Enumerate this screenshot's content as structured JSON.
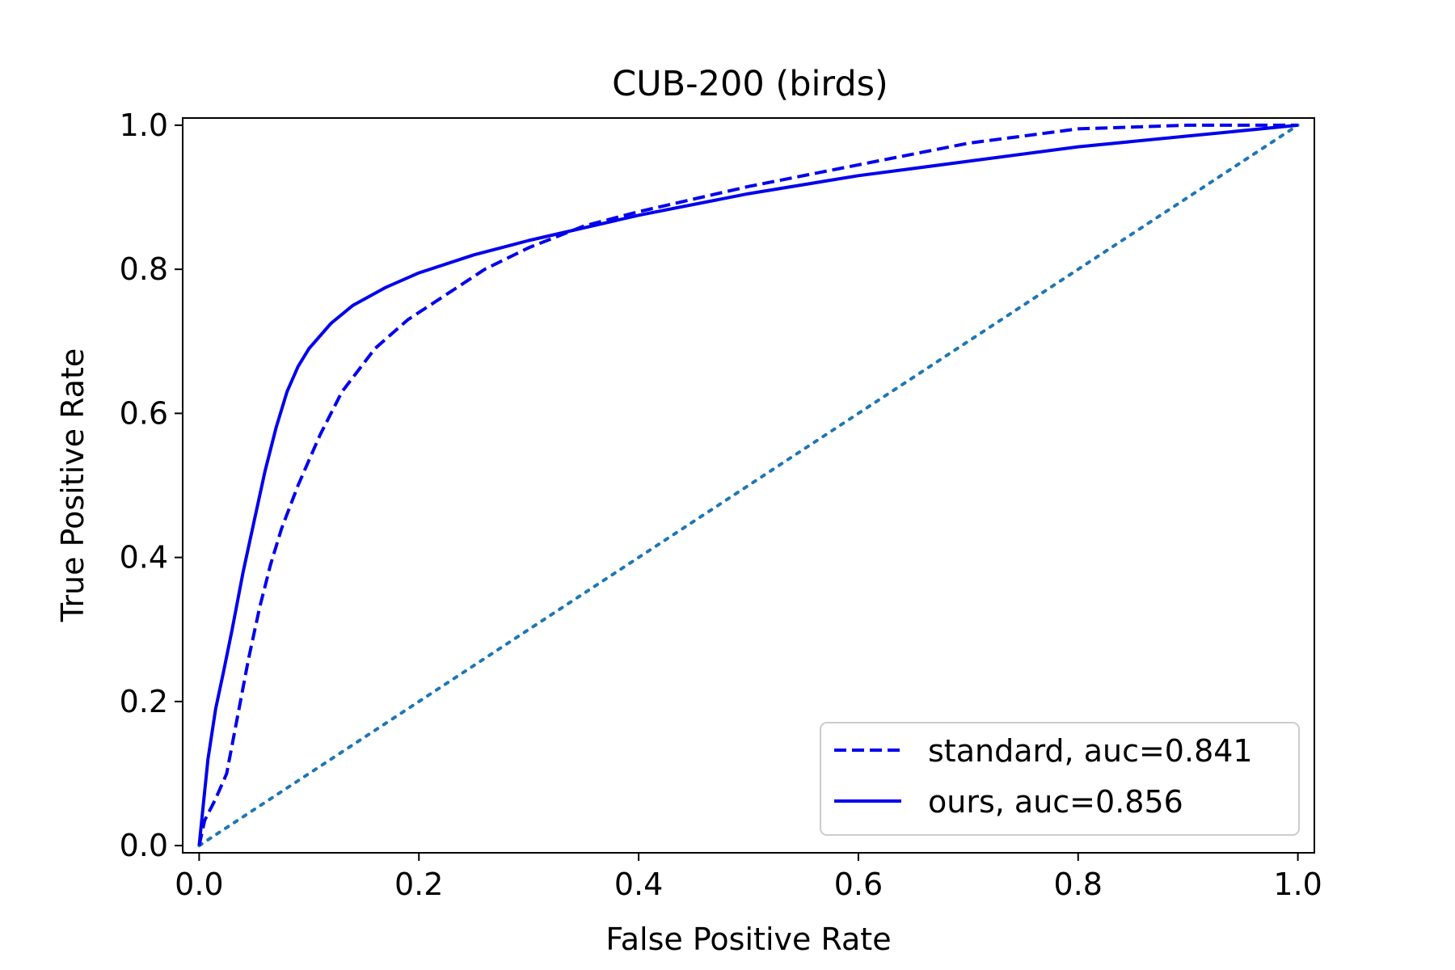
{
  "chart_data": {
    "type": "line",
    "title": "CUB-200 (birds)",
    "xlabel": "False Positive Rate",
    "ylabel": "True Positive Rate",
    "xlim": [
      -0.015,
      1.015
    ],
    "ylim": [
      -0.01,
      1.01
    ],
    "xticks": [
      {
        "value": 0.0,
        "label": "0.0"
      },
      {
        "value": 0.2,
        "label": "0.2"
      },
      {
        "value": 0.4,
        "label": "0.4"
      },
      {
        "value": 0.6,
        "label": "0.6"
      },
      {
        "value": 0.8,
        "label": "0.8"
      },
      {
        "value": 1.0,
        "label": "1.0"
      }
    ],
    "yticks": [
      {
        "value": 0.0,
        "label": "0.0"
      },
      {
        "value": 0.2,
        "label": "0.2"
      },
      {
        "value": 0.4,
        "label": "0.4"
      },
      {
        "value": 0.6,
        "label": "0.6"
      },
      {
        "value": 0.8,
        "label": "0.8"
      },
      {
        "value": 1.0,
        "label": "1.0"
      }
    ],
    "grid": false,
    "legend_position": "lower-right",
    "series": [
      {
        "name": "standard, auc=0.841",
        "style": "dashed",
        "color": "#0000ee",
        "x": [
          0.0,
          0.005,
          0.015,
          0.025,
          0.035,
          0.045,
          0.055,
          0.065,
          0.075,
          0.09,
          0.11,
          0.13,
          0.16,
          0.19,
          0.22,
          0.26,
          0.3,
          0.35,
          0.4,
          0.5,
          0.6,
          0.7,
          0.8,
          0.9,
          1.0
        ],
        "y": [
          0.0,
          0.035,
          0.065,
          0.1,
          0.18,
          0.26,
          0.33,
          0.39,
          0.44,
          0.5,
          0.57,
          0.63,
          0.69,
          0.73,
          0.76,
          0.8,
          0.83,
          0.86,
          0.88,
          0.915,
          0.945,
          0.975,
          0.995,
          1.0,
          1.0
        ]
      },
      {
        "name": "ours, auc=0.856",
        "style": "solid",
        "color": "#0000ee",
        "x": [
          0.0,
          0.004,
          0.008,
          0.015,
          0.022,
          0.03,
          0.04,
          0.05,
          0.06,
          0.07,
          0.08,
          0.09,
          0.1,
          0.12,
          0.14,
          0.17,
          0.2,
          0.25,
          0.3,
          0.4,
          0.5,
          0.6,
          0.7,
          0.8,
          0.9,
          1.0
        ],
        "y": [
          0.0,
          0.06,
          0.12,
          0.19,
          0.24,
          0.3,
          0.38,
          0.45,
          0.52,
          0.58,
          0.63,
          0.665,
          0.69,
          0.725,
          0.75,
          0.775,
          0.795,
          0.82,
          0.84,
          0.875,
          0.905,
          0.93,
          0.95,
          0.97,
          0.985,
          1.0
        ]
      },
      {
        "name": "",
        "style": "dotted",
        "color": "#1f77b4",
        "x": [
          0.0,
          1.0
        ],
        "y": [
          0.0,
          1.0
        ]
      }
    ]
  }
}
